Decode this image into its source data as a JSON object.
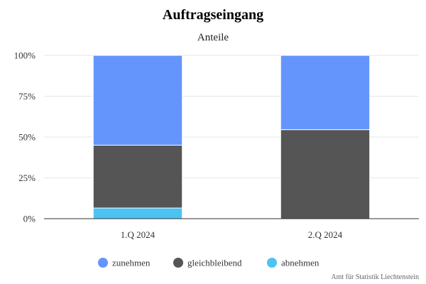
{
  "chart_data": {
    "type": "bar",
    "stacked": true,
    "percent": true,
    "title": "Auftragseingang",
    "subtitle": "Anteile",
    "xlabel": "",
    "ylabel": "",
    "categories": [
      "1.Q 2024",
      "2.Q 2024"
    ],
    "series": [
      {
        "name": "abnehmen",
        "values": [
          6.5,
          0
        ],
        "color": "#4cc3f0"
      },
      {
        "name": "gleichbleibend",
        "values": [
          38.5,
          54.5
        ],
        "color": "#555555"
      },
      {
        "name": "zunehmen",
        "values": [
          55,
          45.5
        ],
        "color": "#6495fc"
      }
    ],
    "legend_order": [
      "zunehmen",
      "gleichbleibend",
      "abnehmen"
    ],
    "yticks": [
      "0%",
      "25%",
      "50%",
      "75%",
      "100%"
    ],
    "ylim": [
      0,
      100
    ],
    "grid": true,
    "legend_position": "bottom-center",
    "credits": "Amt für Statistik Liechtenstein"
  }
}
